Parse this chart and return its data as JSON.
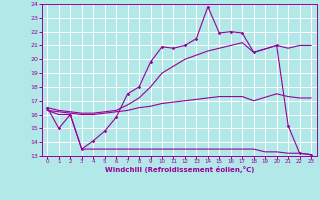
{
  "xlabel": "Windchill (Refroidissement éolien,°C)",
  "background_color": "#b2e8e8",
  "grid_color": "#ffffff",
  "line_color": "#990099",
  "xlim": [
    -0.5,
    23.5
  ],
  "ylim": [
    13,
    24
  ],
  "xticks": [
    0,
    1,
    2,
    3,
    4,
    5,
    6,
    7,
    8,
    9,
    10,
    11,
    12,
    13,
    14,
    15,
    16,
    17,
    18,
    19,
    20,
    21,
    22,
    23
  ],
  "yticks": [
    13,
    14,
    15,
    16,
    17,
    18,
    19,
    20,
    21,
    22,
    23,
    24
  ],
  "line1_x": [
    0,
    1,
    2,
    3,
    4,
    5,
    6,
    7,
    8,
    9,
    10,
    11,
    12,
    13,
    14,
    15,
    16,
    17,
    18,
    20,
    21,
    22,
    23
  ],
  "line1_y": [
    16.5,
    15.0,
    16.0,
    13.5,
    14.1,
    14.8,
    15.8,
    17.5,
    18.0,
    19.8,
    20.9,
    20.8,
    21.0,
    21.5,
    23.8,
    21.9,
    22.0,
    21.9,
    20.5,
    21.0,
    15.2,
    13.2,
    13.1
  ],
  "line2_x": [
    0,
    1,
    2,
    3,
    4,
    5,
    6,
    7,
    8,
    9,
    10,
    11,
    12,
    13,
    14,
    15,
    16,
    17,
    18,
    20,
    21,
    22,
    23
  ],
  "line2_y": [
    16.5,
    16.3,
    16.2,
    16.1,
    16.1,
    16.2,
    16.3,
    16.7,
    17.2,
    18.0,
    19.0,
    19.5,
    20.0,
    20.3,
    20.6,
    20.8,
    21.0,
    21.2,
    20.5,
    21.0,
    20.8,
    21.0,
    21.0
  ],
  "line3_x": [
    0,
    1,
    2,
    3,
    4,
    5,
    6,
    7,
    8,
    9,
    10,
    11,
    12,
    13,
    14,
    15,
    16,
    17,
    18,
    19,
    20,
    21,
    22,
    23
  ],
  "line3_y": [
    16.3,
    16.0,
    16.0,
    13.5,
    13.5,
    13.5,
    13.5,
    13.5,
    13.5,
    13.5,
    13.5,
    13.5,
    13.5,
    13.5,
    13.5,
    13.5,
    13.5,
    13.5,
    13.5,
    13.3,
    13.3,
    13.2,
    13.2,
    13.1
  ],
  "line4_x": [
    0,
    1,
    2,
    3,
    4,
    5,
    6,
    7,
    8,
    9,
    10,
    11,
    12,
    13,
    14,
    15,
    16,
    17,
    18,
    20,
    21,
    22,
    23
  ],
  "line4_y": [
    16.3,
    16.2,
    16.1,
    16.0,
    16.0,
    16.1,
    16.2,
    16.3,
    16.5,
    16.6,
    16.8,
    16.9,
    17.0,
    17.1,
    17.2,
    17.3,
    17.3,
    17.3,
    17.0,
    17.5,
    17.3,
    17.2,
    17.2
  ]
}
